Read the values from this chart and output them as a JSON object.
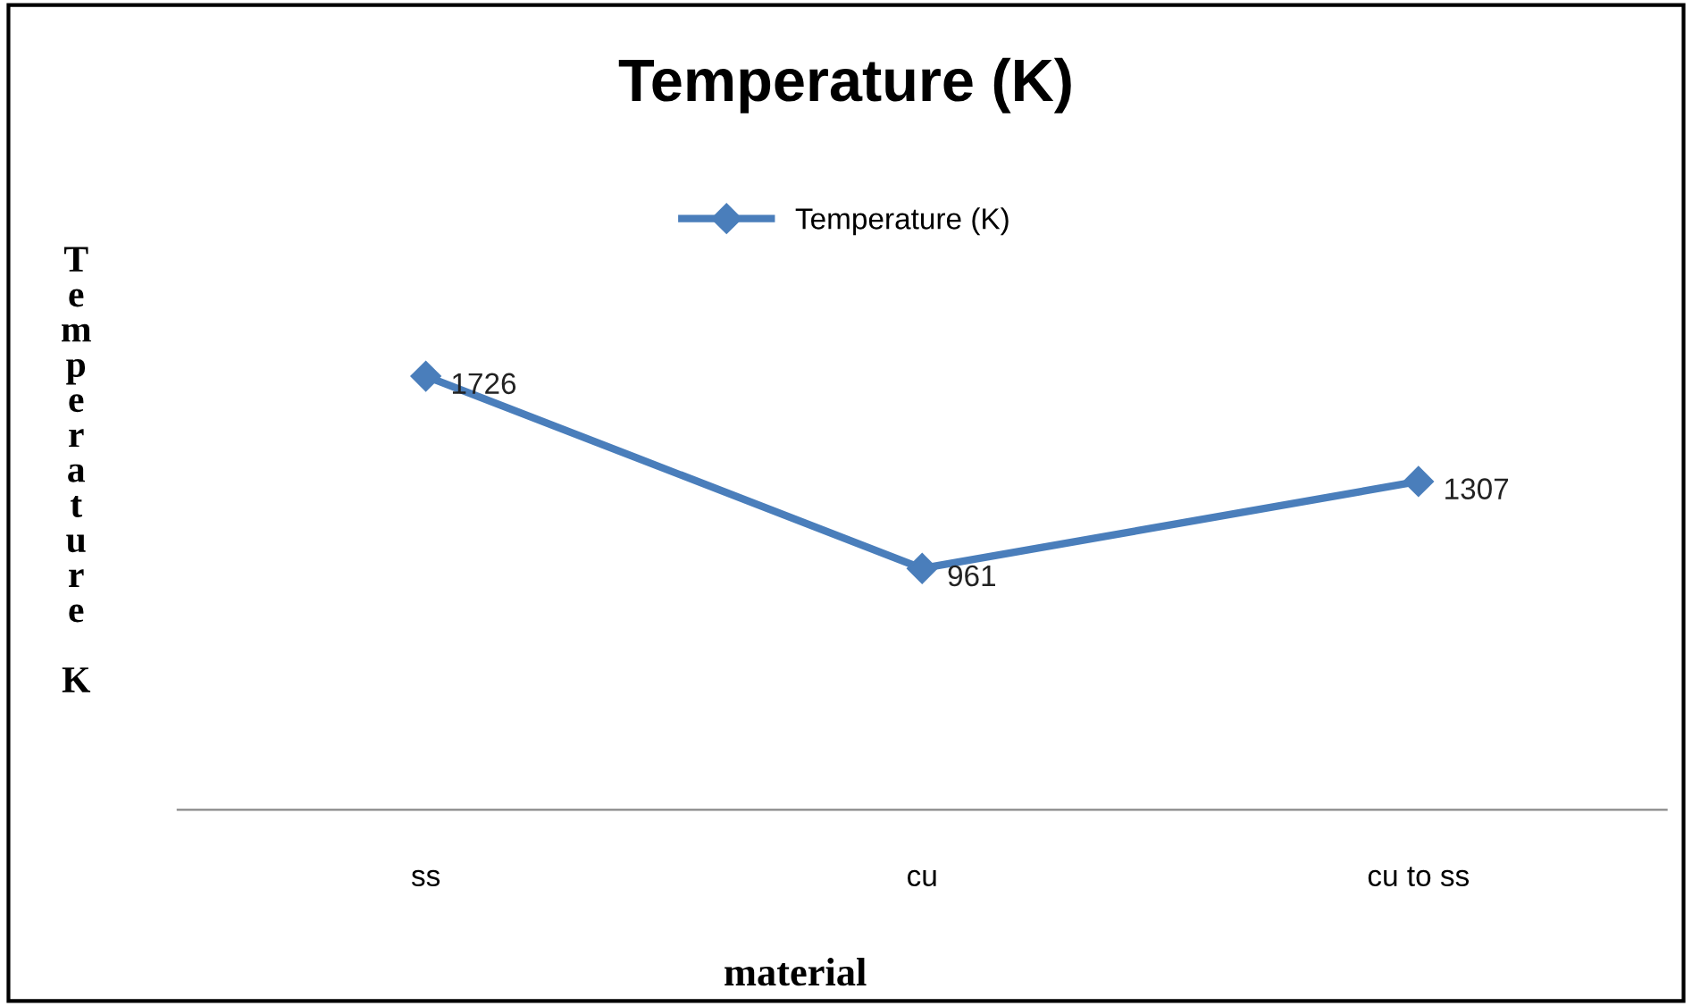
{
  "chart_data": {
    "type": "line",
    "title": "Temperature (K)",
    "xlabel": "material",
    "ylabel": "Temperature K",
    "categories": [
      "ss",
      "cu",
      "cu to ss"
    ],
    "series": [
      {
        "name": "Temperature (K)",
        "color": "#4a7ebb",
        "values": [
          1726,
          961,
          1307
        ]
      }
    ],
    "tick_labels": "x",
    "data_labels": true,
    "legend": "top",
    "marker": "diamond",
    "line_style": "solid",
    "grid": false
  }
}
